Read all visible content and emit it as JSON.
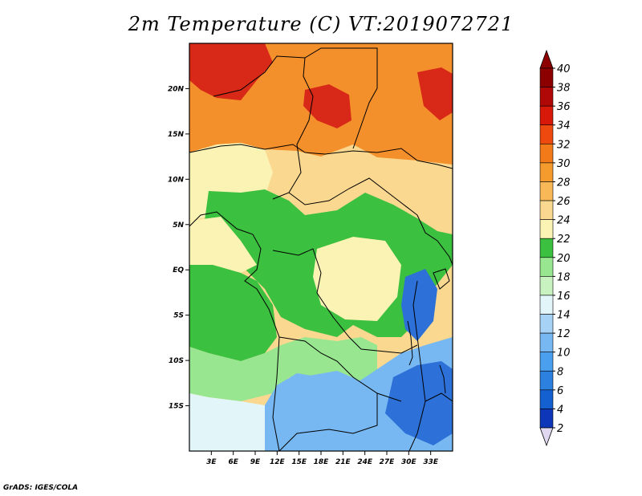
{
  "title": "2m Temperature (C) VT:2019072721",
  "footer": "GrADS: IGES/COLA",
  "map": {
    "lon_range": [
      0,
      36
    ],
    "lat_range": [
      -20,
      25
    ],
    "lon_ticks": [
      "3E",
      "6E",
      "9E",
      "12E",
      "15E",
      "18E",
      "21E",
      "24E",
      "27E",
      "30E",
      "33E"
    ],
    "lat_ticks": [
      "20N",
      "15N",
      "10N",
      "5N",
      "EQ",
      "5S",
      "10S",
      "15S"
    ]
  },
  "colorbar": {
    "levels": [
      "2",
      "4",
      "6",
      "8",
      "10",
      "12",
      "14",
      "16",
      "18",
      "20",
      "22",
      "24",
      "26",
      "28",
      "30",
      "32",
      "34",
      "36",
      "38",
      "40"
    ],
    "colors": [
      "#180e80",
      "#0d37b8",
      "#1560d0",
      "#2c80e0",
      "#4aa0ef",
      "#78b8f2",
      "#a6d2f6",
      "#e2f6fa",
      "#c8f2c0",
      "#98e690",
      "#3cc040",
      "#fbf3b4",
      "#fad890",
      "#f8b858",
      "#f59a2c",
      "#f27a18",
      "#ee4a10",
      "#d81808",
      "#b00806",
      "#8c0000"
    ],
    "under_color": "#e0d8f0",
    "over_color": "#8c0000"
  },
  "colors": {
    "hot": "#d82818",
    "warm": "#f4902c",
    "mild": "#fad890",
    "neutral": "#fbf3b4",
    "green": "#3cc040",
    "lightgreen": "#98e690",
    "pale": "#e2f6fa",
    "cool": "#78b8f2",
    "cold": "#2c70d8",
    "border": "#000000"
  }
}
